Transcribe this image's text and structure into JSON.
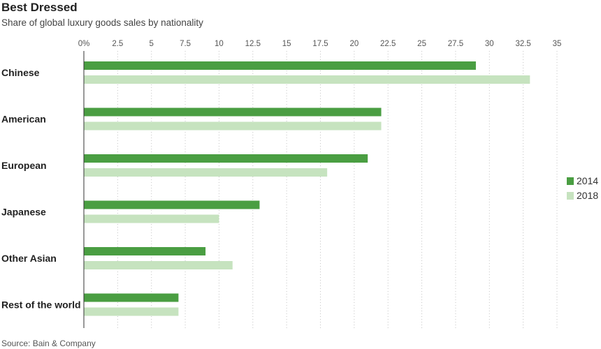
{
  "chart_data": {
    "type": "bar",
    "orientation": "horizontal",
    "title": "Best Dressed",
    "subtitle": "Share of global luxury goods sales by nationality",
    "source": "Source: Bain & Company",
    "categories": [
      "Chinese",
      "American",
      "European",
      "Japanese",
      "Other Asian",
      "Rest of the world"
    ],
    "series": [
      {
        "name": "2014",
        "color": "#4a9e42",
        "values": [
          29,
          22,
          21,
          13,
          9,
          7
        ]
      },
      {
        "name": "2018",
        "color": "#c6e3bf",
        "values": [
          33,
          22,
          18,
          10,
          11,
          7
        ]
      }
    ],
    "xlim": [
      0,
      35
    ],
    "xticks": [
      0,
      2.5,
      5,
      7.5,
      10,
      12.5,
      15,
      17.5,
      20,
      22.5,
      25,
      27.5,
      30,
      32.5,
      35
    ],
    "xtick_labels": [
      "0%",
      "2.5",
      "5",
      "7.5",
      "10",
      "12.5",
      "15",
      "17.5",
      "20",
      "22.5",
      "25",
      "27.5",
      "30",
      "32.5",
      "35"
    ],
    "grid": "vertical dotted",
    "legend_position": "right"
  }
}
